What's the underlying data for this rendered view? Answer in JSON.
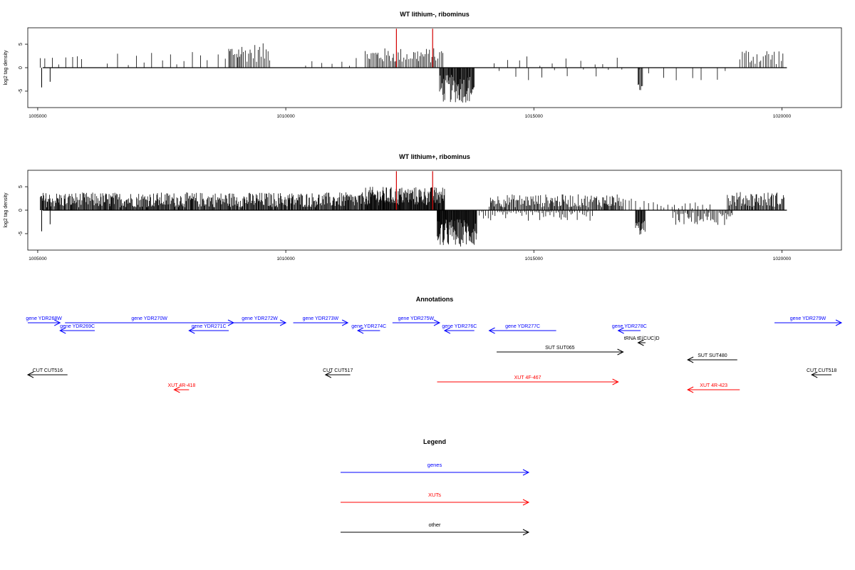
{
  "chart_data": [
    {
      "type": "bar",
      "title": "WT lithium-, ribominus",
      "xlabel": "",
      "ylabel": "log2 tag density",
      "xlim": [
        1004800,
        1021200
      ],
      "ylim": [
        -8.5,
        8.5
      ],
      "x_ticks": [
        1005000,
        1010000,
        1015000,
        1020000
      ],
      "x_tick_labels": [
        "1005000",
        "1010000",
        "1015000",
        "1020000"
      ],
      "y_ticks": [
        -5,
        0,
        5
      ],
      "y_tick_labels": [
        "-5",
        "0",
        "5"
      ],
      "grid": false,
      "highlight_color": "#d40000",
      "bar_color": "#000000",
      "highlights": [
        {
          "x": 1012230,
          "y": 8.3
        },
        {
          "x": 1012960,
          "y": 8.3
        }
      ],
      "positive_clusters": [
        {
          "start": 1005050,
          "end": 1005950,
          "spacing": 110,
          "base": 1.6,
          "amp": 1.4
        },
        {
          "start": 1006400,
          "end": 1008800,
          "spacing": 170,
          "base": 1.8,
          "amp": 1.6
        },
        {
          "start": 1008850,
          "end": 1009700,
          "spacing": 30,
          "base": 3.2,
          "amp": 2.0
        },
        {
          "start": 1010400,
          "end": 1011600,
          "spacing": 160,
          "base": 1.5,
          "amp": 1.3
        },
        {
          "start": 1011600,
          "end": 1013200,
          "spacing": 28,
          "base": 2.6,
          "amp": 1.6
        },
        {
          "start": 1014200,
          "end": 1016800,
          "spacing": 220,
          "base": 1.4,
          "amp": 1.2
        },
        {
          "start": 1019150,
          "end": 1020050,
          "spacing": 40,
          "base": 2.4,
          "amp": 1.8
        }
      ],
      "negative_clusters": [
        {
          "start": 1013100,
          "end": 1013800,
          "spacing": 12,
          "base": -4.5,
          "amp": 3.0
        },
        {
          "start": 1014300,
          "end": 1019000,
          "spacing": 260,
          "base": -1.5,
          "amp": 1.6
        },
        {
          "start": 1017100,
          "end": 1017200,
          "spacing": 20,
          "base": -4.3,
          "amp": 0.8
        }
      ],
      "spikes": [
        {
          "x": 1005080,
          "y": -4.2
        },
        {
          "x": 1005250,
          "y": -3.0
        }
      ]
    },
    {
      "type": "bar",
      "title": "WT lithium+, ribominus",
      "xlabel": "",
      "ylabel": "log2 tag density",
      "xlim": [
        1004800,
        1021200
      ],
      "ylim": [
        -8.5,
        8.5
      ],
      "x_ticks": [
        1005000,
        1010000,
        1015000,
        1020000
      ],
      "x_tick_labels": [
        "1005000",
        "1010000",
        "1015000",
        "1020000"
      ],
      "y_ticks": [
        -5,
        0,
        5
      ],
      "y_tick_labels": [
        "-5",
        "0",
        "5"
      ],
      "grid": false,
      "highlight_color": "#d40000",
      "bar_color": "#000000",
      "highlights": [
        {
          "x": 1012230,
          "y": 8.3
        },
        {
          "x": 1012960,
          "y": 8.3
        }
      ],
      "positive_clusters": [
        {
          "start": 1005050,
          "end": 1011600,
          "spacing": 14,
          "base": 2.2,
          "amp": 1.6
        },
        {
          "start": 1011600,
          "end": 1013200,
          "spacing": 10,
          "base": 3.0,
          "amp": 2.0
        },
        {
          "start": 1014100,
          "end": 1016800,
          "spacing": 18,
          "base": 2.0,
          "amp": 1.4
        },
        {
          "start": 1016800,
          "end": 1018600,
          "spacing": 70,
          "base": 1.4,
          "amp": 1.1
        },
        {
          "start": 1018900,
          "end": 1020050,
          "spacing": 16,
          "base": 2.3,
          "amp": 1.6
        }
      ],
      "negative_clusters": [
        {
          "start": 1013050,
          "end": 1013850,
          "spacing": 9,
          "base": -4.8,
          "amp": 3.0
        },
        {
          "start": 1013900,
          "end": 1016200,
          "spacing": 40,
          "base": -1.2,
          "amp": 1.1
        },
        {
          "start": 1017050,
          "end": 1017250,
          "spacing": 12,
          "base": -3.8,
          "amp": 1.6
        },
        {
          "start": 1017800,
          "end": 1019000,
          "spacing": 25,
          "base": -1.8,
          "amp": 1.4
        }
      ],
      "spikes": [
        {
          "x": 1005080,
          "y": -4.5
        },
        {
          "x": 1005250,
          "y": -3.0
        }
      ]
    }
  ],
  "annotations": {
    "title": "Annotations",
    "xlim": [
      1004800,
      1021200
    ],
    "colors": {
      "gene": "#0000ff",
      "xut": "#ff0000",
      "other": "#000000"
    },
    "features": [
      {
        "label": "gene YDR268W",
        "kind": "gene",
        "start": 1004800,
        "end": 1005450,
        "dir": "+",
        "row": 0
      },
      {
        "label": "gene YDR269C",
        "kind": "gene",
        "start": 1005450,
        "end": 1006150,
        "dir": "-",
        "row": 1
      },
      {
        "label": "gene YDR270W",
        "kind": "gene",
        "start": 1005550,
        "end": 1008950,
        "dir": "+",
        "row": 0
      },
      {
        "label": "gene YDR271C",
        "kind": "gene",
        "start": 1008050,
        "end": 1008850,
        "dir": "-",
        "row": 1
      },
      {
        "label": "gene YDR272W",
        "kind": "gene",
        "start": 1008950,
        "end": 1010000,
        "dir": "+",
        "row": 0
      },
      {
        "label": "gene YDR273W",
        "kind": "gene",
        "start": 1010150,
        "end": 1011250,
        "dir": "+",
        "row": 0
      },
      {
        "label": "gene YDR274C",
        "kind": "gene",
        "start": 1011450,
        "end": 1011900,
        "dir": "-",
        "row": 1
      },
      {
        "label": "gene YDR275W",
        "kind": "gene",
        "start": 1012150,
        "end": 1013100,
        "dir": "+",
        "row": 0
      },
      {
        "label": "gene YDR276C",
        "kind": "gene",
        "start": 1013200,
        "end": 1013800,
        "dir": "-",
        "row": 1
      },
      {
        "label": "gene YDR277C",
        "kind": "gene",
        "start": 1014100,
        "end": 1015450,
        "dir": "-",
        "row": 1
      },
      {
        "label": "gene YDR278C",
        "kind": "gene",
        "start": 1016700,
        "end": 1017150,
        "dir": "-",
        "row": 1
      },
      {
        "label": "tRNA tE(CUC)D",
        "kind": "other",
        "start": 1017100,
        "end": 1017250,
        "dir": "-",
        "row": 2
      },
      {
        "label": "SUT SUT065",
        "kind": "other",
        "start": 1014250,
        "end": 1016800,
        "dir": "+",
        "row": 3
      },
      {
        "label": "SUT SUT480",
        "kind": "other",
        "start": 1018100,
        "end": 1019100,
        "dir": "-",
        "row": 4
      },
      {
        "label": "gene YDR279W",
        "kind": "gene",
        "start": 1019850,
        "end": 1021200,
        "dir": "+",
        "row": 0
      },
      {
        "label": "CUT CUT516",
        "kind": "other",
        "start": 1004800,
        "end": 1005600,
        "dir": "-",
        "row": 5
      },
      {
        "label": "CUT CUT517",
        "kind": "other",
        "start": 1010800,
        "end": 1011300,
        "dir": "-",
        "row": 5
      },
      {
        "label": "CUT CUT518",
        "kind": "other",
        "start": 1020600,
        "end": 1021000,
        "dir": "-",
        "row": 5
      },
      {
        "label": "XUT 4F-467",
        "kind": "xut",
        "start": 1013050,
        "end": 1016700,
        "dir": "+",
        "row": 6
      },
      {
        "label": "XUT 4R-418",
        "kind": "xut",
        "start": 1007750,
        "end": 1008050,
        "dir": "-",
        "row": 7
      },
      {
        "label": "XUT 4R-423",
        "kind": "xut",
        "start": 1018100,
        "end": 1019150,
        "dir": "-",
        "row": 7
      }
    ]
  },
  "legend": {
    "title": "Legend",
    "items": [
      {
        "label": "genes",
        "color": "#0000ff"
      },
      {
        "label": "XUTs",
        "color": "#ff0000"
      },
      {
        "label": "other",
        "color": "#000000"
      }
    ]
  }
}
